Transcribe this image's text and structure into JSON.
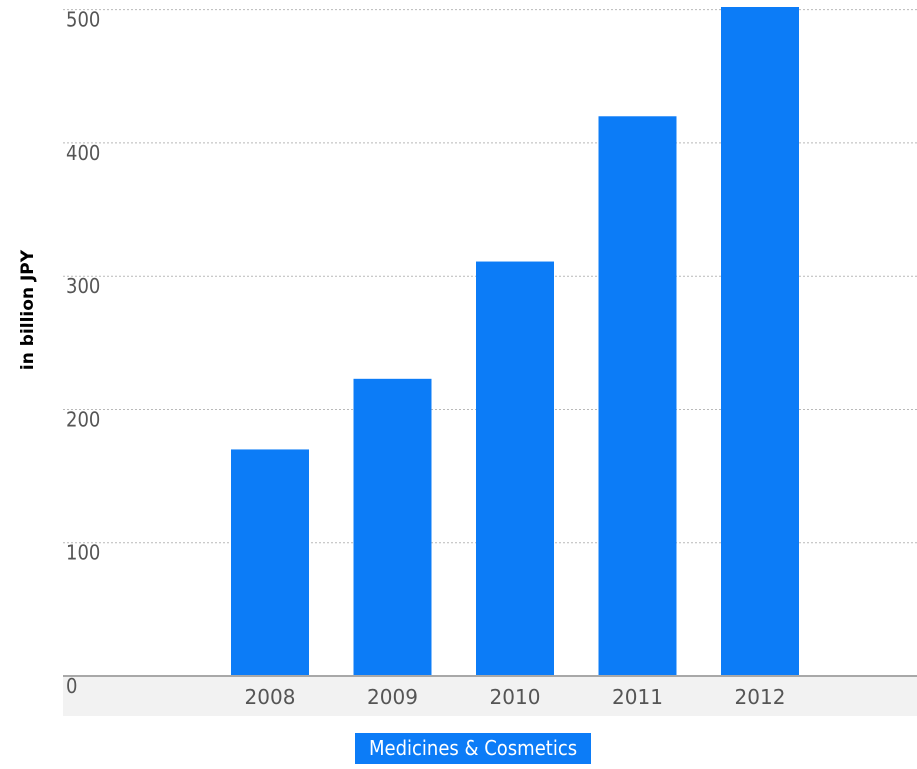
{
  "chart_data": {
    "type": "bar",
    "categories": [
      "2008",
      "2009",
      "2010",
      "2011",
      "2012"
    ],
    "series": [
      {
        "name": "Medicines & Cosmetics",
        "values": [
          170,
          223,
          311,
          420,
          502
        ]
      }
    ],
    "ylabel": "in billion JPY",
    "xlabel": "",
    "ylim": [
      0,
      502
    ],
    "yticks": [
      "0",
      "100",
      "200",
      "300",
      "400",
      "500"
    ],
    "grid": true,
    "legend_placement": "bottom-center",
    "colors": {
      "bar": "#0c7cf7",
      "grid": "#b9b9b9",
      "axis_band": "#f2f2f2",
      "baseline": "#a8a8a8",
      "tick_text": "#555555"
    }
  }
}
